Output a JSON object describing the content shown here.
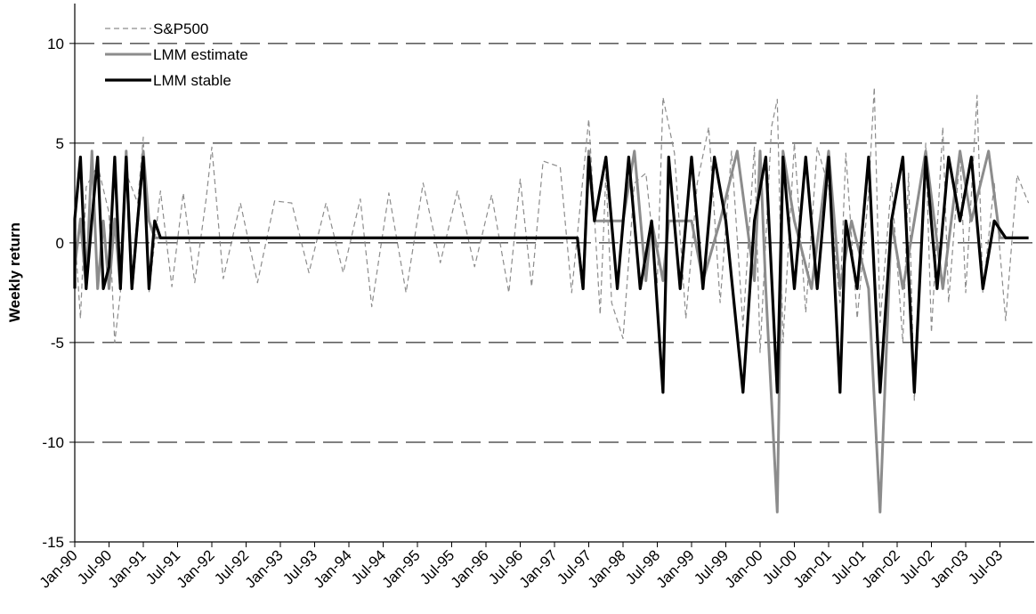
{
  "chart_data": {
    "type": "line",
    "title": "",
    "xlabel": "",
    "ylabel": "Weekly return",
    "ylim": [
      -15,
      12
    ],
    "yticks": [
      -15,
      -10,
      -5,
      0,
      5,
      10
    ],
    "xlim": [
      "1990-01",
      "2004-01"
    ],
    "xticks": [
      "Jan-90",
      "Jul-90",
      "Jan-91",
      "Jul-91",
      "Jan-92",
      "Jul-92",
      "Jan-93",
      "Jul-93",
      "Jan-94",
      "Jul-94",
      "Jan-95",
      "Jul-95",
      "Jan-96",
      "Jul-96",
      "Jan-97",
      "Jul-97",
      "Jan-98",
      "Jul-98",
      "Jan-99",
      "Jul-99",
      "Jan-00",
      "Jul-00",
      "Jan-01",
      "Jul-01",
      "Jan-02",
      "Jul-02",
      "Jan-03",
      "Jul-03"
    ],
    "grid": "horizontal dashed",
    "legend_position": "top-left",
    "series": [
      {
        "name": "S&P500",
        "style": "dashed",
        "color": "#8c8c8c",
        "points": [
          [
            "1990-01",
            0.5
          ],
          [
            "1990-02",
            -3.8
          ],
          [
            "1990-03",
            2.8
          ],
          [
            "1990-05",
            3.9
          ],
          [
            "1990-07",
            1.5
          ],
          [
            "1990-08",
            -5.0
          ],
          [
            "1990-09",
            -2.5
          ],
          [
            "1990-10",
            3.5
          ],
          [
            "1990-12",
            2.0
          ],
          [
            "1991-01",
            5.3
          ],
          [
            "1991-02",
            -2.5
          ],
          [
            "1991-04",
            2.6
          ],
          [
            "1991-06",
            -2.2
          ],
          [
            "1991-08",
            2.5
          ],
          [
            "1991-10",
            -2.0
          ],
          [
            "1991-12",
            2.2
          ],
          [
            "1992-01",
            4.8
          ],
          [
            "1992-03",
            -1.8
          ],
          [
            "1992-06",
            2.0
          ],
          [
            "1992-09",
            -2.0
          ],
          [
            "1992-12",
            2.1
          ],
          [
            "1993-03",
            2.0
          ],
          [
            "1993-06",
            -1.5
          ],
          [
            "1993-09",
            2.0
          ],
          [
            "1993-12",
            -1.5
          ],
          [
            "1994-03",
            2.2
          ],
          [
            "1994-05",
            -3.2
          ],
          [
            "1994-08",
            2.5
          ],
          [
            "1994-11",
            -2.5
          ],
          [
            "1995-02",
            3.0
          ],
          [
            "1995-05",
            -1.0
          ],
          [
            "1995-08",
            2.6
          ],
          [
            "1995-11",
            -1.2
          ],
          [
            "1996-02",
            2.4
          ],
          [
            "1996-05",
            -2.5
          ],
          [
            "1996-07",
            3.2
          ],
          [
            "1996-09",
            -2.2
          ],
          [
            "1996-11",
            4.1
          ],
          [
            "1997-02",
            3.8
          ],
          [
            "1997-04",
            -2.5
          ],
          [
            "1997-06",
            3.3
          ],
          [
            "1997-07",
            6.2
          ],
          [
            "1997-09",
            -3.6
          ],
          [
            "1997-10",
            3.5
          ],
          [
            "1997-11",
            -3.0
          ],
          [
            "1998-01",
            -4.8
          ],
          [
            "1998-03",
            3.0
          ],
          [
            "1998-05",
            3.5
          ],
          [
            "1998-07",
            -2.0
          ],
          [
            "1998-08",
            7.3
          ],
          [
            "1998-10",
            4.5
          ],
          [
            "1998-12",
            -3.8
          ],
          [
            "1999-02",
            3.0
          ],
          [
            "1999-04",
            5.8
          ],
          [
            "1999-06",
            -3.0
          ],
          [
            "1999-08",
            4.6
          ],
          [
            "1999-10",
            -4.2
          ],
          [
            "1999-12",
            4.8
          ],
          [
            "2000-01",
            -5.5
          ],
          [
            "2000-03",
            5.8
          ],
          [
            "2000-04",
            7.2
          ],
          [
            "2000-05",
            -5.0
          ],
          [
            "2000-07",
            5.0
          ],
          [
            "2000-09",
            -3.5
          ],
          [
            "2000-11",
            4.8
          ],
          [
            "2001-01",
            2.8
          ],
          [
            "2001-03",
            -3.0
          ],
          [
            "2001-04",
            4.5
          ],
          [
            "2001-06",
            -3.8
          ],
          [
            "2001-08",
            2.5
          ],
          [
            "2001-09",
            7.8
          ],
          [
            "2001-10",
            -4.0
          ],
          [
            "2001-12",
            3.0
          ],
          [
            "2002-02",
            -5.0
          ],
          [
            "2002-03",
            3.5
          ],
          [
            "2002-04",
            -7.9
          ],
          [
            "2002-06",
            5.0
          ],
          [
            "2002-07",
            -4.5
          ],
          [
            "2002-09",
            5.8
          ],
          [
            "2002-10",
            -3.0
          ],
          [
            "2002-12",
            4.5
          ],
          [
            "2003-01",
            -2.5
          ],
          [
            "2003-03",
            7.4
          ],
          [
            "2003-04",
            -2.5
          ],
          [
            "2003-06",
            3.0
          ],
          [
            "2003-08",
            -3.9
          ],
          [
            "2003-10",
            3.4
          ],
          [
            "2003-12",
            2.0
          ]
        ]
      },
      {
        "name": "LMM estimate",
        "style": "solid",
        "color": "#8c8c8c",
        "points": [
          [
            "1990-01",
            -1.2
          ],
          [
            "1990-02",
            1.2
          ],
          [
            "1990-03",
            -2.3
          ],
          [
            "1990-04",
            4.6
          ],
          [
            "1990-05",
            -2.3
          ],
          [
            "1990-06",
            1.1
          ],
          [
            "1990-07",
            -2.3
          ],
          [
            "1990-08",
            1.2
          ],
          [
            "1990-09",
            -2.3
          ],
          [
            "1990-10",
            4.6
          ],
          [
            "1990-11",
            -2.3
          ],
          [
            "1990-12",
            1.1
          ],
          [
            "1991-01",
            4.6
          ],
          [
            "1991-02",
            1.1
          ],
          [
            "1991-03",
            0.25
          ],
          [
            "1997-05",
            0.25
          ],
          [
            "1997-06",
            -2.3
          ],
          [
            "1997-07",
            4.6
          ],
          [
            "1997-08",
            1.1
          ],
          [
            "1998-01",
            1.1
          ],
          [
            "1998-03",
            4.6
          ],
          [
            "1998-05",
            -1.9
          ],
          [
            "1998-06",
            1.1
          ],
          [
            "1998-08",
            -1.9
          ],
          [
            "1998-09",
            1.1
          ],
          [
            "1999-01",
            1.1
          ],
          [
            "1999-03",
            -1.9
          ],
          [
            "1999-06",
            1.1
          ],
          [
            "1999-09",
            4.6
          ],
          [
            "1999-12",
            -1.9
          ],
          [
            "2000-01",
            4.6
          ],
          [
            "2000-02",
            -2.3
          ],
          [
            "2000-04",
            -13.5
          ],
          [
            "2000-05",
            4.6
          ],
          [
            "2000-07",
            1.1
          ],
          [
            "2000-10",
            -2.3
          ],
          [
            "2001-01",
            4.6
          ],
          [
            "2001-03",
            -2.3
          ],
          [
            "2001-05",
            1.1
          ],
          [
            "2001-08",
            -2.3
          ],
          [
            "2001-10",
            -13.5
          ],
          [
            "2001-12",
            1.1
          ],
          [
            "2002-02",
            -2.3
          ],
          [
            "2002-04",
            1.1
          ],
          [
            "2002-06",
            4.6
          ],
          [
            "2002-09",
            -2.3
          ],
          [
            "2002-12",
            4.6
          ],
          [
            "2003-02",
            1.1
          ],
          [
            "2003-05",
            4.6
          ],
          [
            "2003-07",
            0.25
          ],
          [
            "2003-12",
            0.25
          ]
        ]
      },
      {
        "name": "LMM stable",
        "style": "solid",
        "color": "#000000",
        "points": [
          [
            "1990-01",
            -2.3
          ],
          [
            "1990-01",
            1.2
          ],
          [
            "1990-02",
            4.3
          ],
          [
            "1990-03",
            -2.3
          ],
          [
            "1990-04",
            1.2
          ],
          [
            "1990-05",
            4.3
          ],
          [
            "1990-06",
            -2.3
          ],
          [
            "1990-07",
            -1.2
          ],
          [
            "1990-08",
            4.3
          ],
          [
            "1990-09",
            -2.3
          ],
          [
            "1990-10",
            4.3
          ],
          [
            "1990-11",
            -2.3
          ],
          [
            "1990-12",
            1.1
          ],
          [
            "1991-01",
            4.3
          ],
          [
            "1991-02",
            -2.3
          ],
          [
            "1991-03",
            1.1
          ],
          [
            "1991-04",
            0.25
          ],
          [
            "1997-05",
            0.25
          ],
          [
            "1997-06",
            -2.3
          ],
          [
            "1997-07",
            4.3
          ],
          [
            "1997-08",
            1.1
          ],
          [
            "1997-10",
            4.3
          ],
          [
            "1997-12",
            -2.3
          ],
          [
            "1998-02",
            4.3
          ],
          [
            "1998-04",
            -2.3
          ],
          [
            "1998-06",
            1.1
          ],
          [
            "1998-08",
            -7.5
          ],
          [
            "1998-09",
            4.3
          ],
          [
            "1998-11",
            -2.3
          ],
          [
            "1999-01",
            4.3
          ],
          [
            "1999-03",
            -2.3
          ],
          [
            "1999-05",
            4.3
          ],
          [
            "1999-07",
            1.1
          ],
          [
            "1999-10",
            -7.5
          ],
          [
            "1999-12",
            1.1
          ],
          [
            "2000-02",
            4.3
          ],
          [
            "2000-04",
            -7.5
          ],
          [
            "2000-05",
            4.3
          ],
          [
            "2000-07",
            -2.3
          ],
          [
            "2000-09",
            4.3
          ],
          [
            "2000-11",
            -2.3
          ],
          [
            "2001-01",
            4.3
          ],
          [
            "2001-03",
            -7.5
          ],
          [
            "2001-04",
            1.1
          ],
          [
            "2001-06",
            -2.3
          ],
          [
            "2001-08",
            4.3
          ],
          [
            "2001-10",
            -7.5
          ],
          [
            "2001-12",
            1.1
          ],
          [
            "2002-02",
            4.3
          ],
          [
            "2002-04",
            -7.5
          ],
          [
            "2002-06",
            4.3
          ],
          [
            "2002-08",
            -2.3
          ],
          [
            "2002-10",
            4.3
          ],
          [
            "2002-12",
            1.1
          ],
          [
            "2003-02",
            4.3
          ],
          [
            "2003-04",
            -2.3
          ],
          [
            "2003-06",
            1.1
          ],
          [
            "2003-08",
            0.25
          ],
          [
            "2003-12",
            0.25
          ]
        ]
      }
    ]
  }
}
